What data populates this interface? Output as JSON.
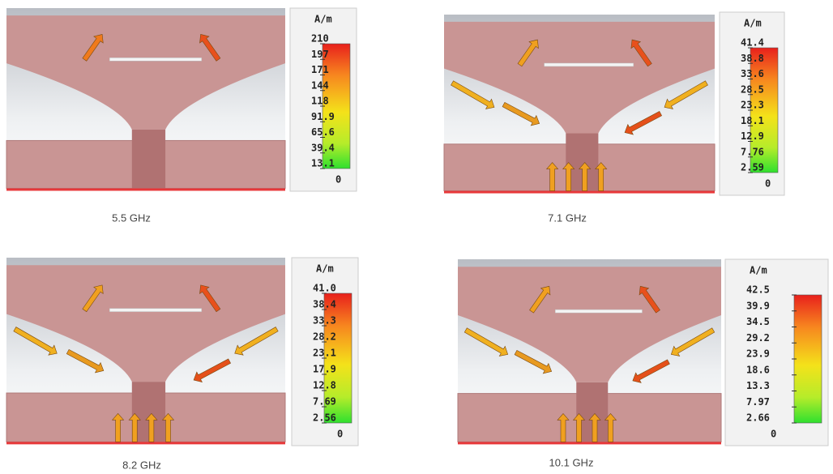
{
  "panels": [
    {
      "caption": "5.5 GHz",
      "unit": "A/m",
      "scale": [
        "210",
        "197",
        "171",
        "144",
        "118",
        "91.9",
        "65.6",
        "39.4",
        "13.1",
        "0"
      ]
    },
    {
      "caption": "7.1 GHz",
      "unit": "A/m",
      "scale": [
        "41.4",
        "38.8",
        "33.6",
        "28.5",
        "23.3",
        "18.1",
        "12.9",
        "7.76",
        "2.59",
        "0"
      ]
    },
    {
      "caption": "8.2 GHz",
      "unit": "A/m",
      "scale": [
        "41.0",
        "38.4",
        "33.3",
        "28.2",
        "23.1",
        "17.9",
        "12.8",
        "7.69",
        "2.56",
        "0"
      ]
    },
    {
      "caption": "10.1 GHz",
      "unit": "A/m",
      "scale": [
        "42.5",
        "39.9",
        "34.5",
        "29.2",
        "23.9",
        "18.6",
        "13.3",
        "7.97",
        "2.66",
        "0"
      ]
    }
  ]
}
